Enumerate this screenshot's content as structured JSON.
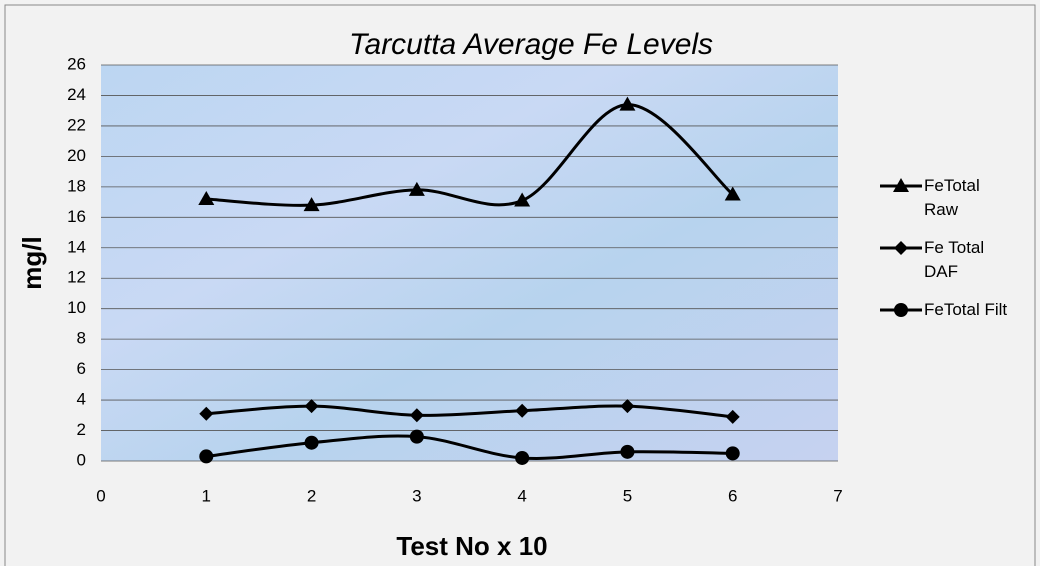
{
  "chart_data": {
    "type": "line",
    "title": "Tarcutta Average Fe Levels",
    "x_label": "Test No x 10",
    "y_label": "mg/l",
    "x": [
      1,
      2,
      3,
      4,
      5,
      6
    ],
    "series": [
      {
        "name": "FeTotal Raw",
        "color": "#000000",
        "marker": "triangle",
        "values": [
          17.2,
          16.8,
          17.8,
          17.1,
          23.4,
          17.5
        ]
      },
      {
        "name": "Fe Total DAF",
        "color": "#000000",
        "marker": "diamond",
        "values": [
          3.1,
          3.6,
          3.0,
          3.3,
          3.6,
          2.9
        ]
      },
      {
        "name": "FeTotal Filt",
        "color": "#000000",
        "marker": "circle",
        "values": [
          0.3,
          1.2,
          1.6,
          0.2,
          0.6,
          0.5
        ]
      }
    ],
    "xlim": [
      0,
      7
    ],
    "xticks": [
      0,
      1,
      2,
      3,
      4,
      5,
      6,
      7
    ],
    "ylim": [
      0,
      26
    ],
    "yticks": [
      0,
      2,
      4,
      6,
      8,
      10,
      12,
      14,
      16,
      18,
      20,
      22,
      24,
      26
    ],
    "grid": true,
    "smooth": true,
    "legend": "right"
  }
}
